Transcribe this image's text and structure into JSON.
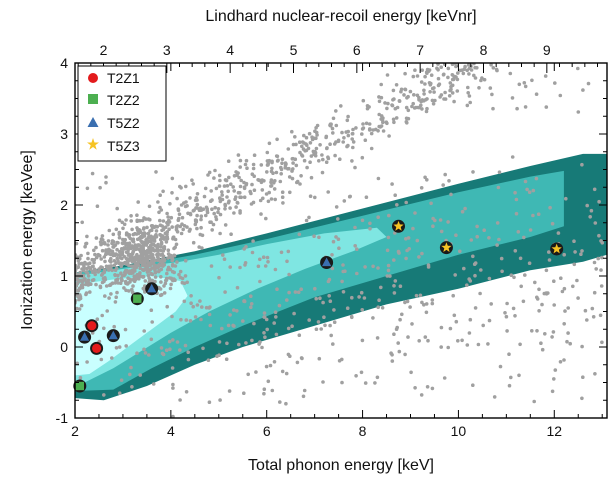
{
  "chart_data": {
    "type": "scatter",
    "title": "",
    "xlabel": "Total phonon energy [keV]",
    "ylabel": "Ionization energy [keVee]",
    "x2label": "Lindhard nuclear-recoil energy [keVnr]",
    "xlim": [
      2,
      13.1
    ],
    "ylim": [
      -1,
      4
    ],
    "x2lim": [
      1.55,
      9.95
    ],
    "xticks": [
      "2",
      "4",
      "6",
      "8",
      "10",
      "12"
    ],
    "yticks": [
      "-1",
      "0",
      "1",
      "2",
      "3",
      "4"
    ],
    "x2ticks": [
      "2",
      "3",
      "4",
      "5",
      "6",
      "7",
      "8",
      "9"
    ],
    "legend_position": "top-left",
    "grid": false,
    "colors": {
      "band_outer": "#1f8f8c",
      "band_outer_dark": "#177a77",
      "band_mid": "#3fb8b4",
      "band_inner": "#7fe6e2",
      "band_core": "#c9ffff",
      "background_dots": "#a0a0a0",
      "T2Z1": "#e31a1c",
      "T2Z2": "#4caf50",
      "T5Z2": "#3a6fb0",
      "T5Z3": "#f6c324"
    },
    "series": [
      {
        "name": "T2Z1",
        "marker": "circle",
        "x": [
          2.35,
          2.45
        ],
        "y": [
          0.3,
          -0.02
        ]
      },
      {
        "name": "T2Z2",
        "marker": "square",
        "x": [
          2.1,
          3.3
        ],
        "y": [
          -0.55,
          0.68
        ]
      },
      {
        "name": "T5Z2",
        "marker": "triangle",
        "x": [
          2.2,
          2.8,
          3.6,
          7.25
        ],
        "y": [
          0.14,
          0.16,
          0.82,
          1.19
        ]
      },
      {
        "name": "T5Z3",
        "marker": "star",
        "x": [
          8.75,
          9.75,
          12.05
        ],
        "y": [
          1.7,
          1.4,
          1.38
        ]
      }
    ]
  }
}
